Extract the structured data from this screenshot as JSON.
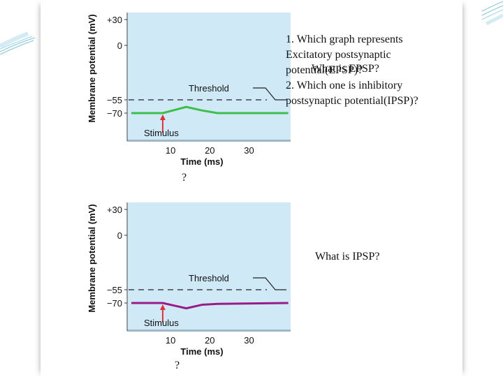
{
  "questions": {
    "q1_line1": "1. Which graph represents",
    "q1_line2": "Excitatory postsynaptic",
    "q1_line3": "potential(EPSP)?",
    "overlay_text": "What is EPSP?",
    "q2_line1": "2. Which one is inhibitory",
    "q2_line2": "postsynaptic potential(IPSP)?"
  },
  "marks": {
    "mark_top": "?",
    "ipsp_question": "What is IPSP?",
    "mark_bottom": "?"
  },
  "colors": {
    "plot_bg": "#cfe9f7",
    "epsp_line": "#3cc04a",
    "ipsp_line": "#9a1a8a",
    "stimulus_arrow": "#e0303a"
  },
  "chart_data": [
    {
      "type": "line",
      "title": "",
      "xlabel": "Time (ms)",
      "ylabel": "Membrane potential (mV)",
      "xlim": [
        0,
        40
      ],
      "x_ticks": [
        "10",
        "20",
        "30"
      ],
      "y_ticks": [
        "+30",
        "0",
        "−55",
        "−70"
      ],
      "series": [
        {
          "x": [
            0,
            8,
            14,
            18,
            22,
            40
          ],
          "y": [
            -70,
            -70,
            -63,
            -67,
            -70,
            -70
          ]
        }
      ],
      "threshold": {
        "label": "Threshold",
        "value": -55
      },
      "stimulus": {
        "label": "Stimulus",
        "time": 10
      }
    },
    {
      "type": "line",
      "title": "",
      "xlabel": "Time (ms)",
      "ylabel": "Membrane potential (mV)",
      "xlim": [
        0,
        40
      ],
      "x_ticks": [
        "10",
        "20",
        "30"
      ],
      "y_ticks": [
        "+30",
        "0",
        "−55",
        "−70"
      ],
      "series": [
        {
          "x": [
            0,
            8,
            14,
            18,
            22,
            40
          ],
          "y": [
            -70,
            -70,
            -76,
            -72,
            -71,
            -70
          ]
        }
      ],
      "threshold": {
        "label": "Threshold",
        "value": -55
      },
      "stimulus": {
        "label": "Stimulus",
        "time": 10
      }
    }
  ]
}
